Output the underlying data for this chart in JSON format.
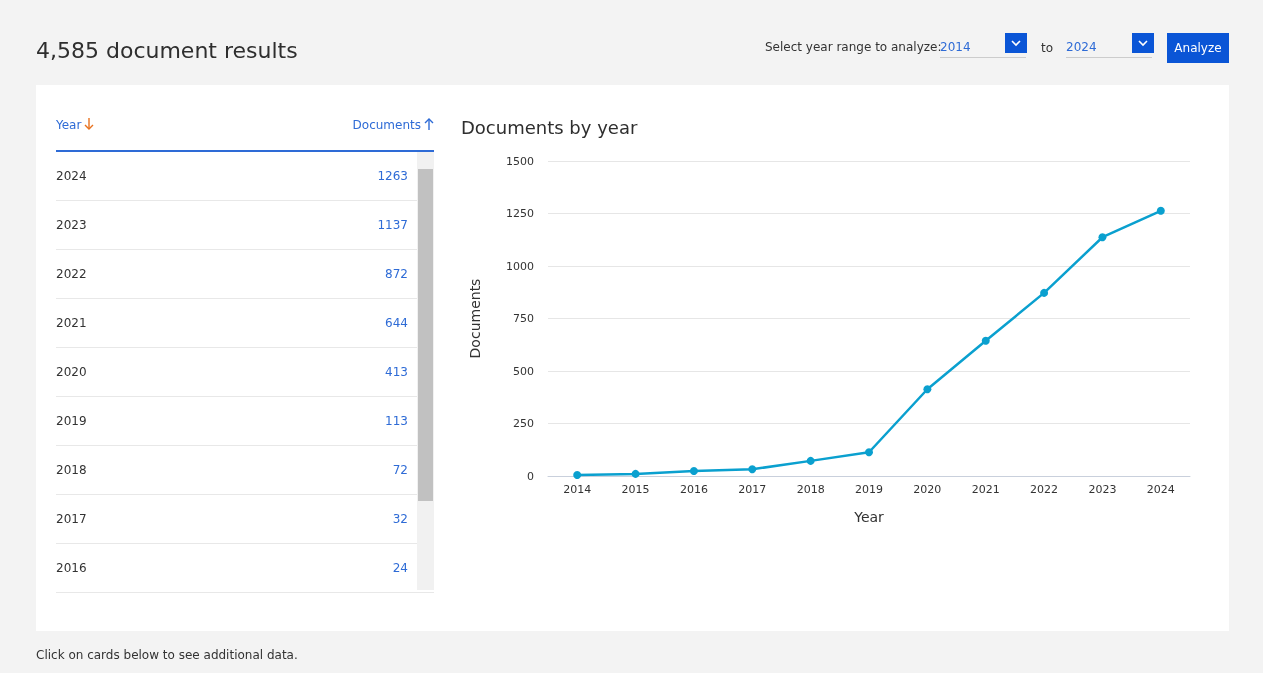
{
  "chart_data": [
    {
      "type": "other",
      "title": "4,585 document results",
      "annotations": [
        "Select year range to analyze:",
        "2014",
        "to",
        "2024",
        "Analyze",
        "Click on cards below to see additional data."
      ]
    },
    {
      "type": "line",
      "title": "Documents by year",
      "xlabel": "Year",
      "ylabel": "Documents",
      "categories": [
        "2014",
        "2015",
        "2016",
        "2017",
        "2018",
        "2019",
        "2020",
        "2021",
        "2022",
        "2023",
        "2024"
      ],
      "series": [
        {
          "color": "#0aa0cf",
          "values": [
            5,
            10,
            24,
            32,
            72,
            113,
            413,
            644,
            872,
            1137,
            1263
          ]
        }
      ],
      "value_labels": [
        null,
        null,
        "24",
        "32",
        "72",
        "113",
        "413",
        "644",
        "872",
        "1137",
        "1263"
      ],
      "ylim": [
        0,
        1500
      ],
      "yticks": [
        0,
        250,
        500,
        750,
        1000,
        1250,
        1500
      ],
      "grid": "y",
      "marker": "circle",
      "line_style": "solid"
    }
  ]
}
